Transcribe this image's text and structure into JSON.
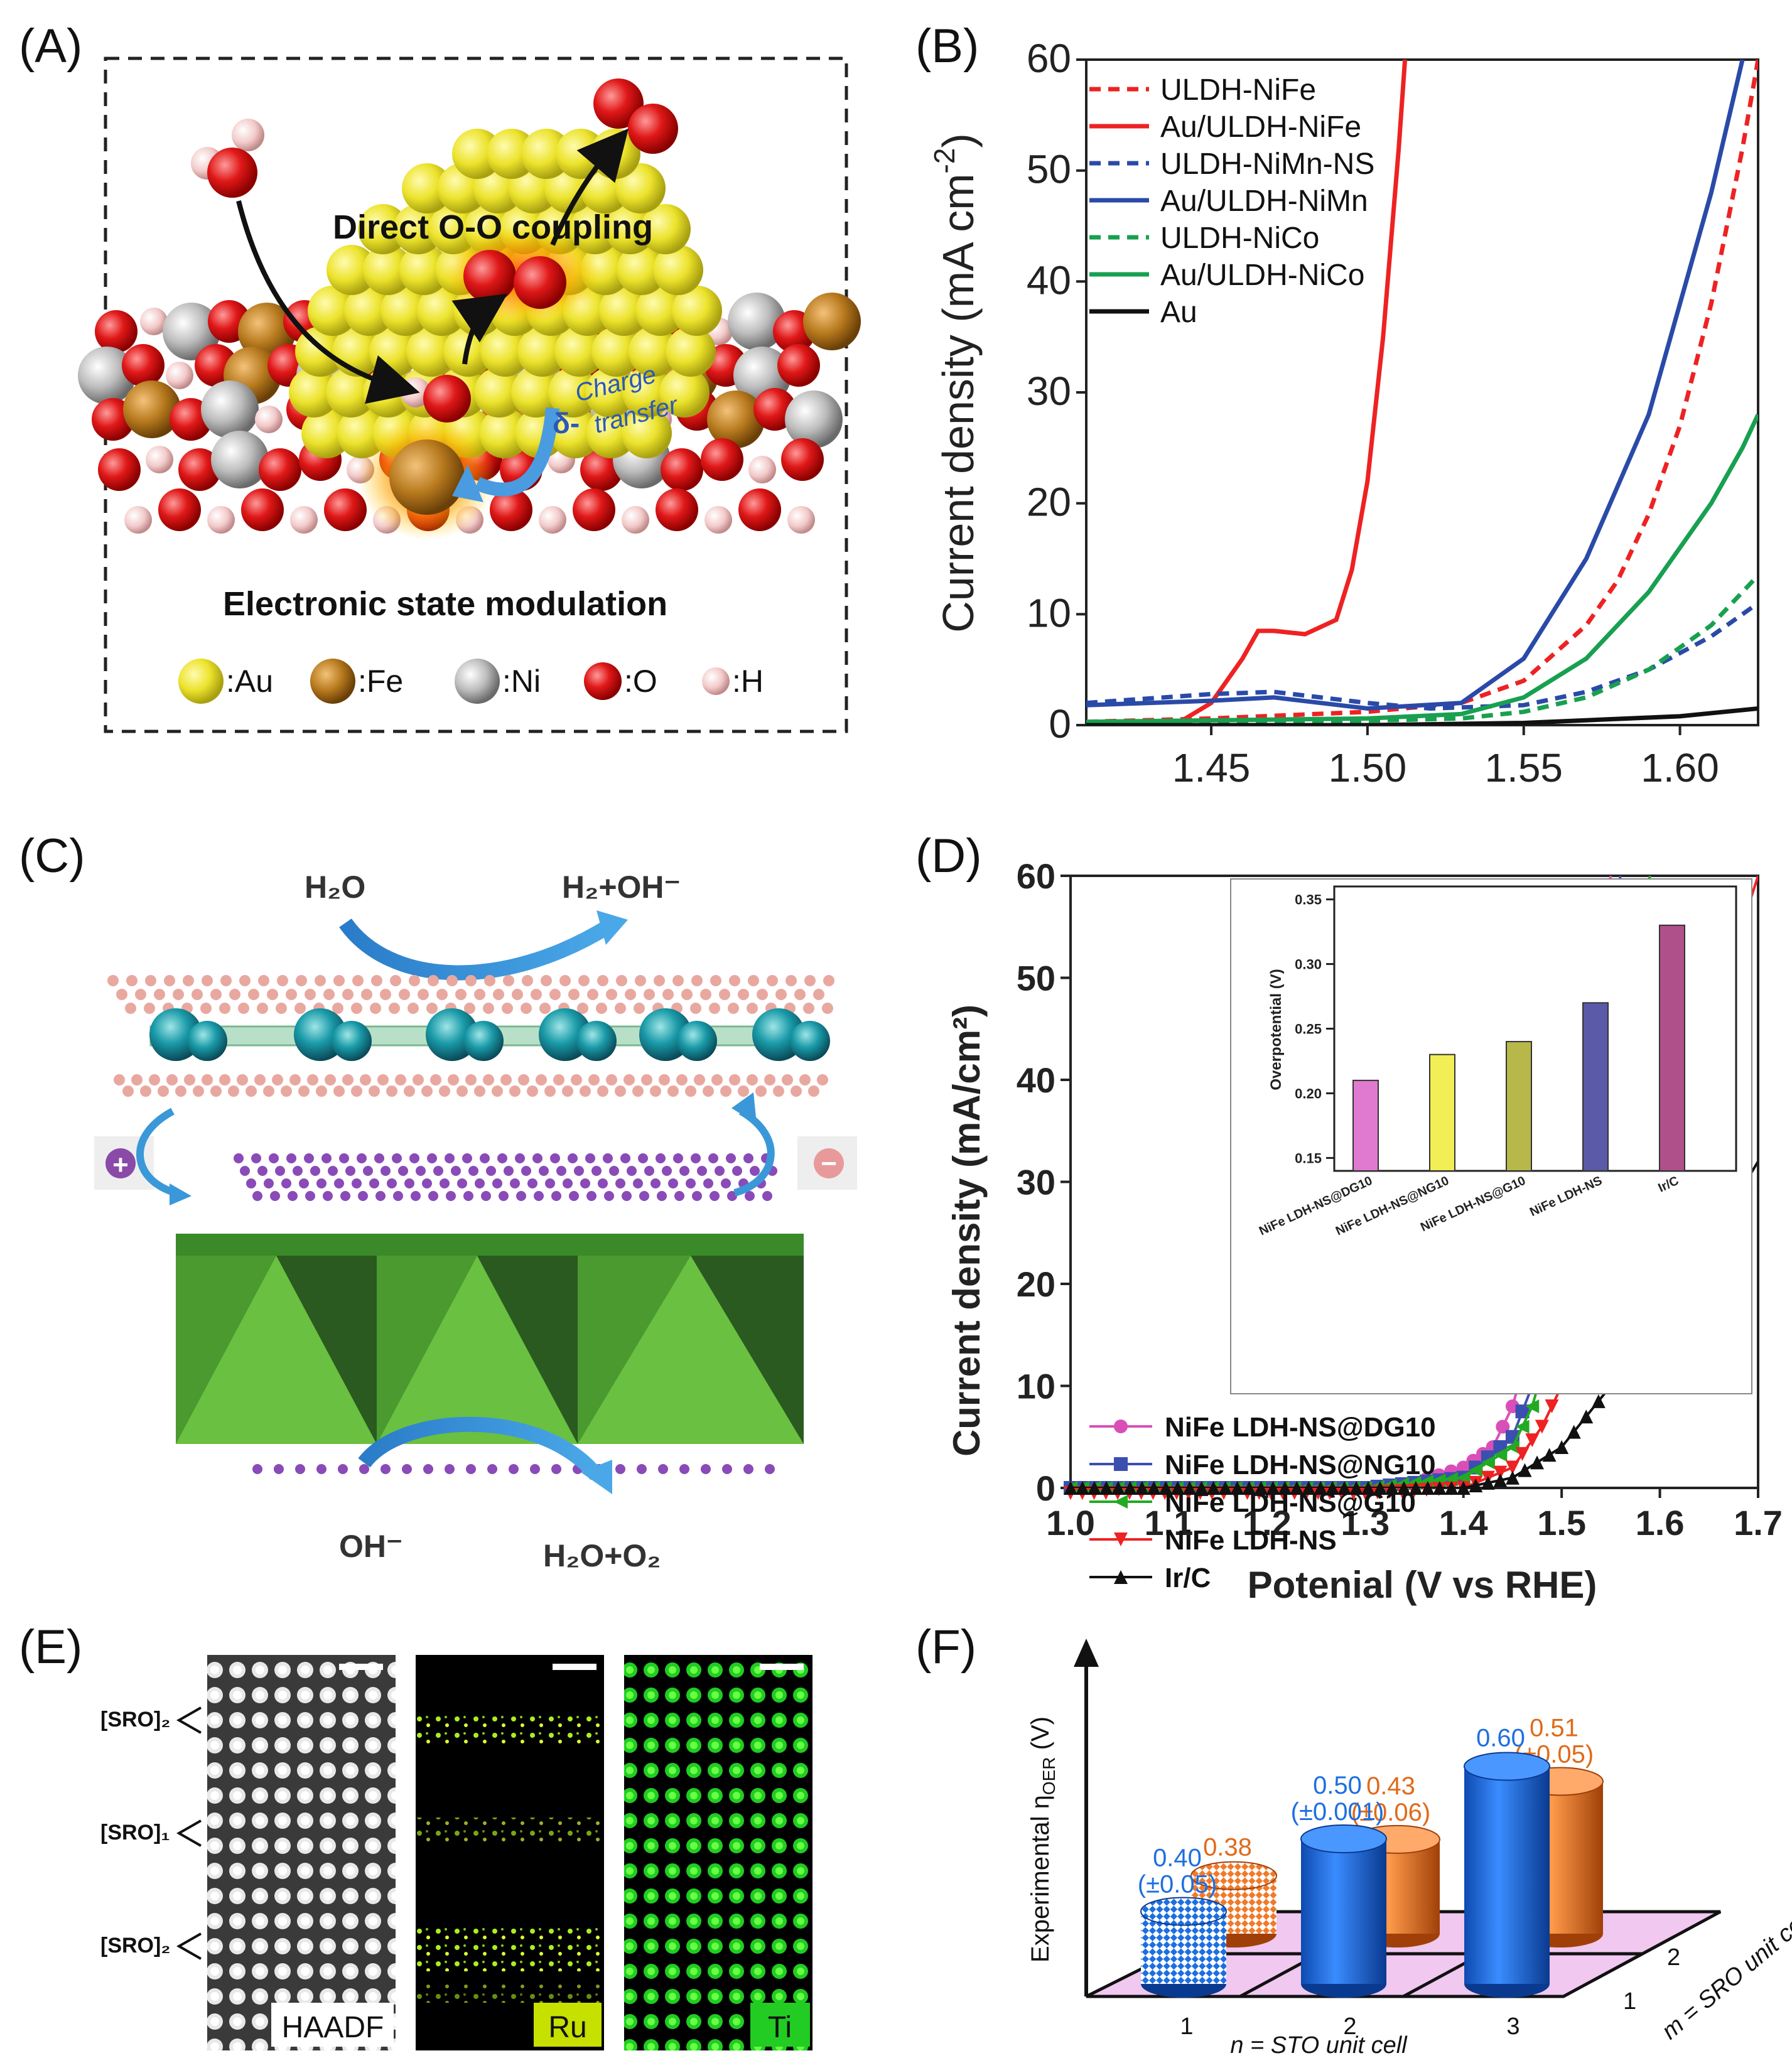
{
  "panels": {
    "a": {
      "label": "(A)",
      "title_top": "Direct O-O coupling",
      "charge1": "Charge",
      "charge2": "transfer",
      "delta": "δ-",
      "bottom": "Electronic state modulation",
      "legend": [
        {
          "label": ":Au",
          "color": "#e8e22a"
        },
        {
          "label": ":Fe",
          "color": "#b87a1e"
        },
        {
          "label": ":Ni",
          "color": "#b9b9b9"
        },
        {
          "label": ":O",
          "color": "#e01818"
        },
        {
          "label": ":H",
          "color": "#f3caca"
        }
      ]
    },
    "b": {
      "label": "(B)",
      "ylabel": "Current density (mA cm",
      "ylabel_sup": "-2",
      "ylabel_close": ")",
      "xticks": [
        "1.45",
        "1.50",
        "1.55",
        "1.60"
      ],
      "yticks": [
        "0",
        "10",
        "20",
        "30",
        "40",
        "50",
        "60"
      ],
      "legend": [
        {
          "label": "ULDH-NiFe",
          "color": "#ee2222",
          "dash": true
        },
        {
          "label": "Au/ULDH-NiFe",
          "color": "#ee2222",
          "dash": false
        },
        {
          "label": "ULDH-NiMn-NS",
          "color": "#2a4aa8",
          "dash": true
        },
        {
          "label": "Au/ULDH-NiMn",
          "color": "#2a4aa8",
          "dash": false
        },
        {
          "label": "ULDH-NiCo",
          "color": "#18a050",
          "dash": true
        },
        {
          "label": "Au/ULDH-NiCo",
          "color": "#18a050",
          "dash": false
        },
        {
          "label": "Au",
          "color": "#111111",
          "dash": false
        }
      ]
    },
    "c": {
      "label": "(C)",
      "top_left": "H₂O",
      "top_right": "H₂+OH⁻",
      "bottom_left": "OH⁻",
      "bottom_right": "H₂O+O₂",
      "plus": "+",
      "minus": "−"
    },
    "d": {
      "label": "(D)",
      "xlabel": "Potenial (V vs RHE)",
      "ylabel": "Current density (mA/cm²)",
      "xticks": [
        "1.0",
        "1.1",
        "1.2",
        "1.3",
        "1.4",
        "1.5",
        "1.6",
        "1.7"
      ],
      "yticks": [
        "0",
        "10",
        "20",
        "30",
        "40",
        "50",
        "60"
      ],
      "legend": [
        {
          "label": "NiFe LDH-NS@DG10",
          "color": "#d94fb8",
          "marker": "circle"
        },
        {
          "label": "NiFe LDH-NS@NG10",
          "color": "#3a4fb0",
          "marker": "square"
        },
        {
          "label": "NiFe LDH-NS@G10",
          "color": "#22aa22",
          "marker": "tri-left"
        },
        {
          "label": "NiFe LDH-NS",
          "color": "#ee2222",
          "marker": "tri-down"
        },
        {
          "label": "Ir/C",
          "color": "#111111",
          "marker": "tri-up"
        }
      ],
      "inset": {
        "ylabel": "Overpotential (V)",
        "yticks": [
          "0.15",
          "0.20",
          "0.25",
          "0.30",
          "0.35"
        ],
        "bars": [
          {
            "label": "NiFe LDH-NS@DG10",
            "value": 0.21,
            "color": "#e07ad0"
          },
          {
            "label": "NiFe LDH-NS@NG10",
            "value": 0.23,
            "color": "#f2ee55"
          },
          {
            "label": "NiFe LDH-NS@G10",
            "value": 0.24,
            "color": "#b8b84a"
          },
          {
            "label": "NiFe LDH-NS",
            "value": 0.27,
            "color": "#5a5aa8"
          },
          {
            "label": "Ir/C",
            "value": 0.33,
            "color": "#b0508a"
          }
        ]
      }
    },
    "e": {
      "label": "(E)",
      "rows": [
        "[SRO]₂",
        "[SRO]₁",
        "[SRO]₂"
      ],
      "images": [
        "HAADF",
        "Ru",
        "Ti"
      ]
    },
    "f": {
      "label": "(F)",
      "ylabel": "Experimental η",
      "ylabel_sub": "OER",
      "ylabel_unit": " (V)",
      "xlabel": "n = STO unit cell",
      "zlabel": "m = SRO unit cell",
      "n_ticks": [
        "1",
        "2",
        "3"
      ],
      "m_ticks": [
        "1",
        "2"
      ],
      "bars": [
        {
          "value": "0.40",
          "err": "(±0.05)",
          "color": "#1d6fe0"
        },
        {
          "value": "0.38",
          "err": "",
          "color": "#f07a2a"
        },
        {
          "value": "0.50",
          "err": "(±0.001)",
          "color": "#1d6fe0"
        },
        {
          "value": "0.43",
          "err": "(±0.06)",
          "color": "#f07a2a"
        },
        {
          "value": "0.60",
          "err": "",
          "color": "#1d6fe0"
        },
        {
          "value": "0.51",
          "err": "(±0.05)",
          "color": "#f07a2a"
        }
      ]
    }
  },
  "chart_data": [
    {
      "type": "line",
      "panel": "B",
      "title": "",
      "xlabel": "",
      "ylabel": "Current density (mA cm-2)",
      "xlim": [
        1.41,
        1.625
      ],
      "ylim": [
        0,
        60
      ],
      "series": [
        {
          "name": "ULDH-NiFe",
          "x": [
            1.41,
            1.45,
            1.5,
            1.53,
            1.55,
            1.57,
            1.58,
            1.59,
            1.6,
            1.61,
            1.62,
            1.625
          ],
          "values": [
            0.3,
            0.6,
            1.2,
            2,
            4,
            9,
            13,
            19,
            27,
            38,
            52,
            60
          ]
        },
        {
          "name": "Au/ULDH-NiFe",
          "x": [
            1.41,
            1.44,
            1.45,
            1.46,
            1.465,
            1.47,
            1.48,
            1.49,
            1.495,
            1.5,
            1.505,
            1.51,
            1.512
          ],
          "values": [
            0,
            0.3,
            2,
            6,
            8.5,
            8.5,
            8.2,
            9.5,
            14,
            22,
            35,
            52,
            60
          ]
        },
        {
          "name": "ULDH-NiMn-NS",
          "x": [
            1.41,
            1.45,
            1.47,
            1.5,
            1.52,
            1.55,
            1.57,
            1.59,
            1.61,
            1.625
          ],
          "values": [
            2,
            2.8,
            3,
            2,
            1.5,
            1.8,
            3,
            5,
            8,
            11
          ]
        },
        {
          "name": "Au/ULDH-NiMn",
          "x": [
            1.41,
            1.45,
            1.47,
            1.5,
            1.53,
            1.55,
            1.57,
            1.59,
            1.6,
            1.61,
            1.62
          ],
          "values": [
            1.8,
            2.2,
            2.5,
            1.5,
            2,
            6,
            15,
            28,
            38,
            48,
            60
          ]
        },
        {
          "name": "ULDH-NiCo",
          "x": [
            1.41,
            1.5,
            1.53,
            1.55,
            1.57,
            1.59,
            1.61,
            1.625
          ],
          "values": [
            0.2,
            0.4,
            0.6,
            1.2,
            2.5,
            5,
            9,
            13.5
          ]
        },
        {
          "name": "Au/ULDH-NiCo",
          "x": [
            1.41,
            1.5,
            1.53,
            1.55,
            1.57,
            1.59,
            1.6,
            1.61,
            1.62,
            1.625
          ],
          "values": [
            0.3,
            0.6,
            1,
            2.5,
            6,
            12,
            16,
            20,
            25,
            28
          ]
        },
        {
          "name": "Au",
          "x": [
            1.41,
            1.5,
            1.55,
            1.6,
            1.625
          ],
          "values": [
            0,
            0,
            0.2,
            0.8,
            1.5
          ]
        }
      ]
    },
    {
      "type": "line",
      "panel": "D",
      "title": "",
      "xlabel": "Potenial (V vs RHE)",
      "ylabel": "Current density (mA/cm²)",
      "xlim": [
        1.0,
        1.7
      ],
      "ylim": [
        0,
        60
      ],
      "series": [
        {
          "name": "NiFe LDH-NS@DG10",
          "x": [
            1.0,
            1.3,
            1.35,
            1.4,
            1.43,
            1.45,
            1.47,
            1.49,
            1.51,
            1.53,
            1.55
          ],
          "values": [
            0,
            0,
            0.5,
            2,
            4,
            8,
            15,
            25,
            38,
            50,
            60
          ]
        },
        {
          "name": "NiFe LDH-NS@NG10",
          "x": [
            1.0,
            1.3,
            1.4,
            1.45,
            1.47,
            1.49,
            1.51,
            1.53,
            1.55,
            1.56
          ],
          "values": [
            0,
            0,
            1,
            5,
            10,
            18,
            30,
            43,
            55,
            60
          ]
        },
        {
          "name": "NiFe LDH-NS@G10",
          "x": [
            1.0,
            1.3,
            1.4,
            1.45,
            1.47,
            1.5,
            1.53,
            1.56,
            1.59
          ],
          "values": [
            0,
            0,
            1,
            4,
            8,
            18,
            32,
            47,
            60
          ]
        },
        {
          "name": "NiFe LDH-NS",
          "x": [
            1.0,
            1.3,
            1.4,
            1.45,
            1.48,
            1.5,
            1.55,
            1.6,
            1.65,
            1.7
          ],
          "values": [
            -0.5,
            -0.5,
            0,
            2,
            6,
            10,
            20,
            32,
            45,
            60
          ]
        },
        {
          "name": "Ir/C",
          "x": [
            1.0,
            1.4,
            1.45,
            1.5,
            1.55,
            1.6,
            1.65,
            1.7
          ],
          "values": [
            0,
            0,
            1,
            4,
            10,
            17,
            24,
            32
          ]
        }
      ]
    },
    {
      "type": "bar",
      "panel": "D inset",
      "title": "",
      "ylabel": "Overpotential (V)",
      "categories": [
        "NiFe LDH-NS@DG10",
        "NiFe LDH-NS@NG10",
        "NiFe LDH-NS@G10",
        "NiFe LDH-NS",
        "Ir/C"
      ],
      "values": [
        0.21,
        0.23,
        0.24,
        0.27,
        0.33
      ],
      "ylim": [
        0.14,
        0.36
      ]
    },
    {
      "type": "bar",
      "panel": "F",
      "title": "",
      "xlabel": "n = STO unit cell",
      "ylabel": "Experimental ηOER (V)",
      "categories": [
        "1",
        "2",
        "3"
      ],
      "series": [
        {
          "name": "m = 1",
          "values": [
            0.4,
            0.5,
            0.6
          ]
        },
        {
          "name": "m = 2",
          "values": [
            0.38,
            0.43,
            0.51
          ]
        }
      ]
    }
  ]
}
